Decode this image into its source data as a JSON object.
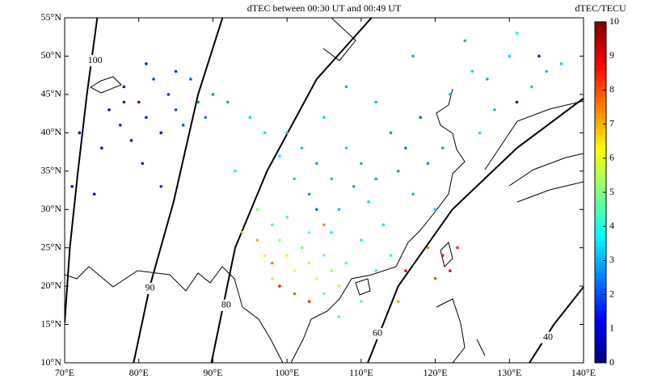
{
  "chart_data": {
    "type": "scatter",
    "title": "dTEC between 00:30 UT and 00:49 UT",
    "colorbar_label": "dTEC/TECU",
    "colormap": "jet",
    "clim": [
      0,
      10
    ],
    "cticks": [
      0,
      1,
      2,
      3,
      4,
      5,
      6,
      7,
      8,
      9,
      10
    ],
    "xlim": [
      70,
      140
    ],
    "xticks": [
      {
        "value": 70,
        "label": "70°E"
      },
      {
        "value": 80,
        "label": "80°E"
      },
      {
        "value": 90,
        "label": "90°E"
      },
      {
        "value": 100,
        "label": "100°E"
      },
      {
        "value": 110,
        "label": "110°E"
      },
      {
        "value": 120,
        "label": "120°E"
      },
      {
        "value": 130,
        "label": "130°E"
      },
      {
        "value": 140,
        "label": "140°E"
      }
    ],
    "ylim": [
      10,
      55
    ],
    "yticks": [
      {
        "value": 10,
        "label": "10°N"
      },
      {
        "value": 15,
        "label": "15°N"
      },
      {
        "value": 20,
        "label": "20°N"
      },
      {
        "value": 25,
        "label": "25°N"
      },
      {
        "value": 30,
        "label": "30°N"
      },
      {
        "value": 35,
        "label": "35°N"
      },
      {
        "value": 40,
        "label": "40°N"
      },
      {
        "value": 45,
        "label": "45°N"
      },
      {
        "value": 50,
        "label": "50°N"
      },
      {
        "value": 55,
        "label": "55°N"
      }
    ],
    "contours": [
      {
        "label": 100,
        "x": [
          74.4,
          73,
          71.8,
          70.7,
          70
        ],
        "y": [
          55,
          45,
          35,
          25,
          15.2
        ],
        "label_x": 74.1,
        "label_y": 49.4
      },
      {
        "label": 90,
        "x": [
          91.3,
          88,
          84.7,
          81.5,
          79.3
        ],
        "y": [
          55,
          45,
          31,
          20,
          10
        ],
        "label_x": 81.5,
        "label_y": 19.7
      },
      {
        "label": 80,
        "x": [
          111.4,
          104,
          97.3,
          93,
          89.8
        ],
        "y": [
          55,
          47,
          35,
          25,
          10
        ],
        "label_x": 91.8,
        "label_y": 17.5
      },
      {
        "label": 60,
        "x": [
          140,
          131,
          122.3,
          115,
          110.9
        ],
        "y": [
          44.5,
          38,
          30,
          20,
          10
        ],
        "label_x": 112.2,
        "label_y": 13.8
      },
      {
        "label": 40,
        "x": [
          140,
          136,
          132.7
        ],
        "y": [
          19.9,
          15,
          10
        ],
        "label_x": 135.2,
        "label_y": 13.3
      }
    ],
    "x": [
      76,
      77.5,
      78,
      79,
      80,
      81,
      82,
      83,
      84,
      85,
      86,
      87,
      88,
      80.5,
      83,
      75,
      72,
      71,
      74,
      89,
      90,
      92,
      81,
      85,
      78,
      100,
      102,
      104,
      106,
      108,
      110,
      112,
      114,
      116,
      118,
      105,
      103,
      107,
      111,
      113,
      109,
      101,
      99,
      97,
      115,
      117,
      119,
      120,
      112,
      108,
      104,
      106,
      110,
      95,
      93,
      122,
      125,
      128,
      130,
      133,
      126,
      124,
      131,
      127,
      135,
      131,
      134,
      137,
      117,
      121,
      98,
      99,
      100,
      101,
      102,
      103,
      104,
      105,
      106,
      107,
      97,
      98,
      100,
      103,
      105,
      108,
      96,
      94,
      112,
      114,
      110,
      107,
      99,
      101,
      103,
      98,
      121,
      122,
      119,
      120,
      115,
      96,
      116,
      123,
      105
    ],
    "y": [
      43,
      41,
      46,
      39,
      44,
      42,
      47,
      40,
      45,
      43,
      41,
      47,
      44,
      36,
      33,
      38,
      40,
      33,
      32,
      42,
      45,
      44,
      49,
      48,
      44,
      40,
      38,
      36,
      34,
      38,
      36,
      34,
      40,
      38,
      42,
      42,
      32,
      30,
      31,
      28,
      33,
      34,
      37,
      40,
      35,
      32,
      36,
      30,
      44,
      46,
      30,
      27,
      26,
      42,
      35,
      45,
      48,
      43,
      50,
      46,
      40,
      52,
      53,
      47,
      48,
      44,
      50,
      49,
      50,
      38,
      28,
      26,
      24,
      22,
      25,
      23,
      21,
      24,
      22,
      20,
      24,
      21,
      29,
      27,
      19,
      23,
      30,
      27,
      22,
      24,
      18,
      16,
      20,
      19,
      18,
      23,
      24,
      22,
      25,
      21,
      18,
      26,
      22,
      25,
      28
    ],
    "values": [
      1.2,
      1.5,
      1.3,
      1.0,
      1.4,
      1.6,
      1.8,
      1.5,
      1.7,
      1.9,
      2.0,
      2.1,
      2.2,
      1.4,
      1.6,
      1.0,
      0.9,
      1.1,
      1.0,
      2.4,
      2.6,
      2.8,
      1.5,
      1.7,
      1.2,
      3.0,
      3.2,
      2.8,
      3.1,
      3.3,
      3.0,
      2.9,
      2.7,
      2.5,
      2.3,
      3.4,
      2.6,
      3.2,
      3.4,
      3.5,
      2.9,
      3.3,
      3.6,
      3.5,
      2.8,
      3.0,
      2.6,
      3.2,
      3.1,
      3.0,
      2.4,
      3.6,
      3.8,
      3.4,
      3.7,
      3.1,
      3.3,
      3.0,
      3.4,
      3.2,
      3.5,
      3.0,
      3.6,
      2.9,
      3.1,
      1.0,
      1.5,
      3.3,
      3.0,
      2.8,
      4.5,
      5.2,
      5.8,
      6.2,
      5.0,
      5.5,
      6.0,
      4.8,
      5.3,
      5.6,
      5.9,
      6.5,
      4.2,
      4.6,
      5.0,
      4.3,
      5.0,
      6.3,
      4.1,
      3.9,
      4.7,
      4.4,
      8.5,
      7.8,
      8.2,
      7.5,
      8.8,
      9.2,
      7.6,
      8.0,
      7.2,
      7.0,
      9.0,
      8.4,
      7.3
    ]
  }
}
